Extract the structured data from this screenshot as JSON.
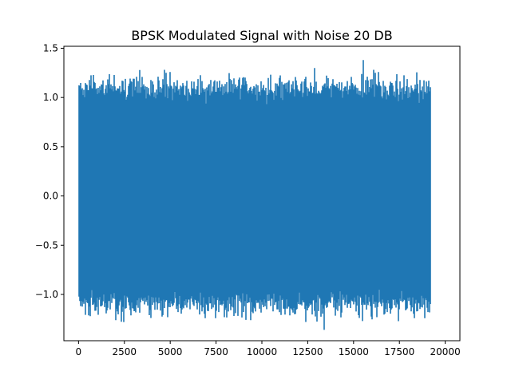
{
  "chart_data": {
    "type": "line",
    "title": "BPSK Modulated Signal with Noise 20 DB",
    "xlabel": "",
    "ylabel": "",
    "xlim": [
      -800,
      20800
    ],
    "ylim": [
      -1.47,
      1.52
    ],
    "xticks": [
      0,
      2500,
      5000,
      7500,
      10000,
      12500,
      15000,
      17500,
      20000
    ],
    "xtick_labels": [
      "0",
      "2500",
      "5000",
      "7500",
      "10000",
      "12500",
      "15000",
      "17500",
      "20000"
    ],
    "yticks": [
      -1.0,
      -0.5,
      0.0,
      0.5,
      1.0,
      1.5
    ],
    "ytick_labels": [
      "−1.0",
      "−0.5",
      "0.0",
      "0.5",
      "1.0",
      "1.5"
    ],
    "grid": false,
    "series": [
      {
        "color": "#1f77b4",
        "x_range": [
          0,
          19200
        ],
        "n_points": 19200,
        "amplitude": 1.0,
        "noise_std": 0.1,
        "peak_max": 1.38,
        "peak_max_x": 15550,
        "peak_min": -1.36,
        "peak_min_x": 13400
      }
    ]
  }
}
